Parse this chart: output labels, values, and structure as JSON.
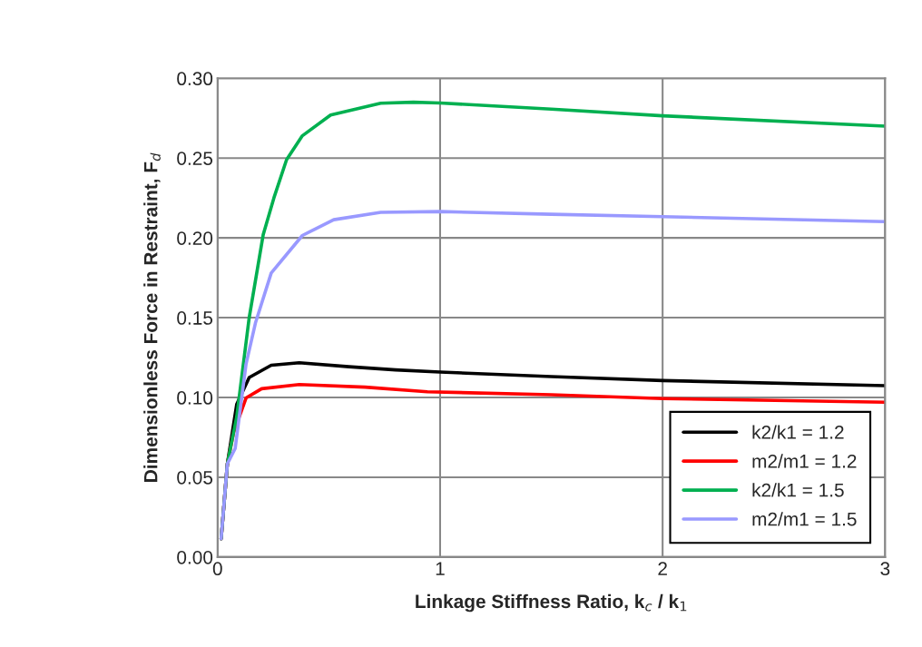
{
  "chart_data": {
    "type": "line",
    "xlabel": "Linkage Stiffness Ratio, k$_{c}$ / k$_{1}$",
    "ylabel": "Dimensionless Force in Restraint, F$_{d}$",
    "xlim": [
      0,
      3
    ],
    "xticks": [
      0,
      1,
      2,
      3
    ],
    "ylim": [
      0,
      0.3
    ],
    "yticks": [
      {
        "value": 0,
        "label": "0.00"
      },
      0.05,
      {
        "value": 0.1,
        "label": "0.10"
      },
      0.15,
      {
        "value": 0.2,
        "label": "0.20"
      },
      0.25,
      {
        "value": 0.3,
        "label": "0.30"
      }
    ],
    "grid": true,
    "legend": "bottom right",
    "line_style": "solid",
    "marker": "none",
    "series": [
      {
        "name": "k2/k1 = 1.2",
        "color": "#000000",
        "x": [
          0.016,
          0.044,
          0.086,
          0.142,
          0.241,
          0.367,
          0.59,
          0.8,
          1,
          1.5,
          2,
          3
        ],
        "values": [
          0.0115,
          0.0585,
          0.0957,
          0.1125,
          0.1202,
          0.1218,
          0.1193,
          0.1173,
          0.1159,
          0.1131,
          0.1106,
          0.1074
        ]
      },
      {
        "name": "m2/m1 = 1.2",
        "color": "#ff0000",
        "x": [
          0.016,
          0.044,
          0.072,
          0.128,
          0.198,
          0.367,
          0.663,
          0.943,
          1.5,
          2,
          3
        ],
        "values": [
          0.0115,
          0.0585,
          0.078,
          0.0997,
          0.1055,
          0.1081,
          0.1065,
          0.1036,
          0.1017,
          0.0993,
          0.097
        ]
      },
      {
        "name": "k2/k1 = 1.5",
        "color": "#00b050",
        "x": [
          0.016,
          0.044,
          0.086,
          0.142,
          0.205,
          0.253,
          0.31,
          0.381,
          0.508,
          0.733,
          0.88,
          1,
          1.5,
          2,
          3
        ],
        "values": [
          0.0115,
          0.0585,
          0.088,
          0.15,
          0.202,
          0.225,
          0.249,
          0.264,
          0.277,
          0.2844,
          0.285,
          0.2845,
          0.2807,
          0.2765,
          0.27
        ]
      },
      {
        "name": "m2/m1 = 1.5",
        "color": "#9999ff",
        "x": [
          0.016,
          0.044,
          0.079,
          0.128,
          0.17,
          0.241,
          0.381,
          0.522,
          0.733,
          1,
          1.5,
          2,
          3
        ],
        "values": [
          0.0115,
          0.0585,
          0.068,
          0.121,
          0.1466,
          0.178,
          0.2015,
          0.2114,
          0.216,
          0.2165,
          0.2148,
          0.2133,
          0.2102
        ]
      }
    ]
  }
}
